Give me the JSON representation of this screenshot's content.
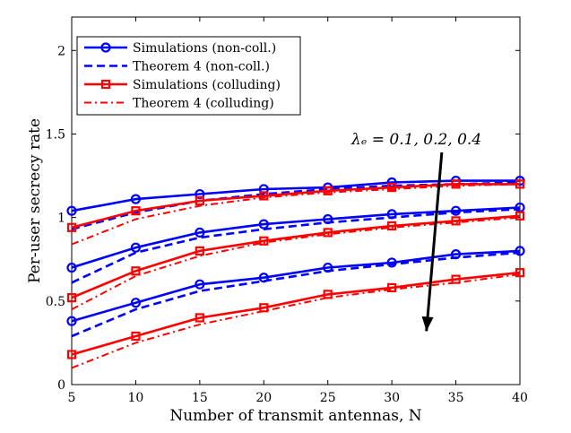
{
  "chart_data": {
    "type": "line",
    "title": "",
    "xlabel": "Number of transmit antennas, N",
    "ylabel": "Per-user secrecy rate",
    "xlim": [
      5,
      40
    ],
    "ylim": [
      0,
      2.2
    ],
    "xticks": [
      5,
      10,
      15,
      20,
      25,
      30,
      35,
      40
    ],
    "yticks": [
      0,
      0.5,
      1,
      1.5,
      2
    ],
    "ytick_labels": [
      "0",
      "0.5",
      "1",
      "1.5",
      "2"
    ],
    "grid": false,
    "legend_position": "top-left",
    "x": [
      5,
      10,
      15,
      20,
      25,
      30,
      35,
      40
    ],
    "colors": {
      "blue": "#0000ff",
      "red": "#ff0000",
      "arrow": "#000000"
    },
    "series": [
      {
        "name": "Simulations (non-coll.)",
        "style": "solid-circle",
        "color": "blue",
        "legend": true,
        "group": 1,
        "values": [
          1.04,
          1.11,
          1.14,
          1.17,
          1.18,
          1.21,
          1.22,
          1.22
        ]
      },
      {
        "name": "Theorem 4 (non-coll.)",
        "style": "dashed",
        "color": "blue",
        "legend": true,
        "group": 1,
        "values": [
          0.93,
          1.03,
          1.1,
          1.14,
          1.17,
          1.19,
          1.2,
          1.21
        ]
      },
      {
        "name": "Simulations (colluding)",
        "style": "solid-square",
        "color": "red",
        "legend": true,
        "group": 1,
        "values": [
          0.94,
          1.04,
          1.1,
          1.13,
          1.16,
          1.18,
          1.2,
          1.2
        ]
      },
      {
        "name": "Theorem 4 (colluding)",
        "style": "dashdot",
        "color": "red",
        "legend": true,
        "group": 1,
        "values": [
          0.84,
          0.99,
          1.07,
          1.12,
          1.15,
          1.17,
          1.19,
          1.2
        ]
      },
      {
        "name": "Simulations (non-coll.)",
        "style": "solid-circle",
        "color": "blue",
        "legend": false,
        "group": 2,
        "values": [
          0.7,
          0.82,
          0.91,
          0.96,
          0.99,
          1.02,
          1.04,
          1.06
        ]
      },
      {
        "name": "Theorem 4 (non-coll.)",
        "style": "dashed",
        "color": "blue",
        "legend": false,
        "group": 2,
        "values": [
          0.61,
          0.79,
          0.88,
          0.93,
          0.97,
          1.0,
          1.03,
          1.05
        ]
      },
      {
        "name": "Simulations (colluding)",
        "style": "solid-square",
        "color": "red",
        "legend": false,
        "group": 2,
        "values": [
          0.52,
          0.68,
          0.8,
          0.86,
          0.91,
          0.95,
          0.98,
          1.01
        ]
      },
      {
        "name": "Theorem 4 (colluding)",
        "style": "dashdot",
        "color": "red",
        "legend": false,
        "group": 2,
        "values": [
          0.45,
          0.65,
          0.77,
          0.85,
          0.9,
          0.94,
          0.97,
          1.0
        ]
      },
      {
        "name": "Simulations (non-coll.)",
        "style": "solid-circle",
        "color": "blue",
        "legend": false,
        "group": 3,
        "values": [
          0.38,
          0.49,
          0.6,
          0.64,
          0.7,
          0.73,
          0.78,
          0.8
        ]
      },
      {
        "name": "Theorem 4 (non-coll.)",
        "style": "dashed",
        "color": "blue",
        "legend": false,
        "group": 3,
        "values": [
          0.29,
          0.45,
          0.56,
          0.62,
          0.68,
          0.72,
          0.76,
          0.79
        ]
      },
      {
        "name": "Simulations (colluding)",
        "style": "solid-square",
        "color": "red",
        "legend": false,
        "group": 3,
        "values": [
          0.18,
          0.29,
          0.4,
          0.46,
          0.54,
          0.58,
          0.63,
          0.67
        ]
      },
      {
        "name": "Theorem 4 (colluding)",
        "style": "dashdot",
        "color": "red",
        "legend": false,
        "group": 3,
        "values": [
          0.1,
          0.25,
          0.36,
          0.44,
          0.52,
          0.57,
          0.61,
          0.66
        ]
      }
    ],
    "annotation": {
      "text": "λₑ = 0.1, 0.2, 0.4",
      "arrow_from": [
        33.9,
        1.39
      ],
      "arrow_to": [
        32.7,
        0.32
      ]
    }
  }
}
